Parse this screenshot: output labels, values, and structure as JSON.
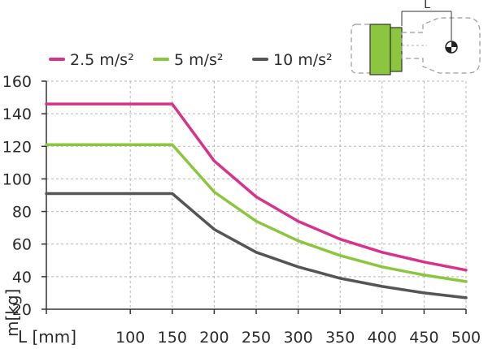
{
  "chart_data": {
    "type": "line",
    "title": "",
    "xlabel": "L [mm]",
    "ylabel": "m[kg]",
    "xlim": [
      0,
      500
    ],
    "ylim": [
      20,
      160
    ],
    "x_ticks": [
      100,
      150,
      200,
      250,
      300,
      350,
      400,
      450,
      500
    ],
    "y_ticks": [
      20,
      40,
      60,
      80,
      100,
      120,
      140,
      160
    ],
    "grid": true,
    "legend": "top",
    "x": [
      0,
      150,
      200,
      250,
      300,
      350,
      400,
      450,
      500
    ],
    "series": [
      {
        "name": "2.5 m/s²",
        "color": "#d6338a",
        "values": [
          146,
          146,
          111,
          89,
          74,
          63,
          55,
          49,
          44
        ]
      },
      {
        "name": "5 m/s²",
        "color": "#8cc63f",
        "values": [
          121,
          121,
          92,
          74,
          62,
          53,
          46,
          41,
          37
        ]
      },
      {
        "name": "10 m/s²",
        "color": "#555555",
        "values": [
          91,
          91,
          69,
          55,
          46,
          39,
          34,
          30,
          27
        ]
      }
    ],
    "diagram_label": "L"
  }
}
